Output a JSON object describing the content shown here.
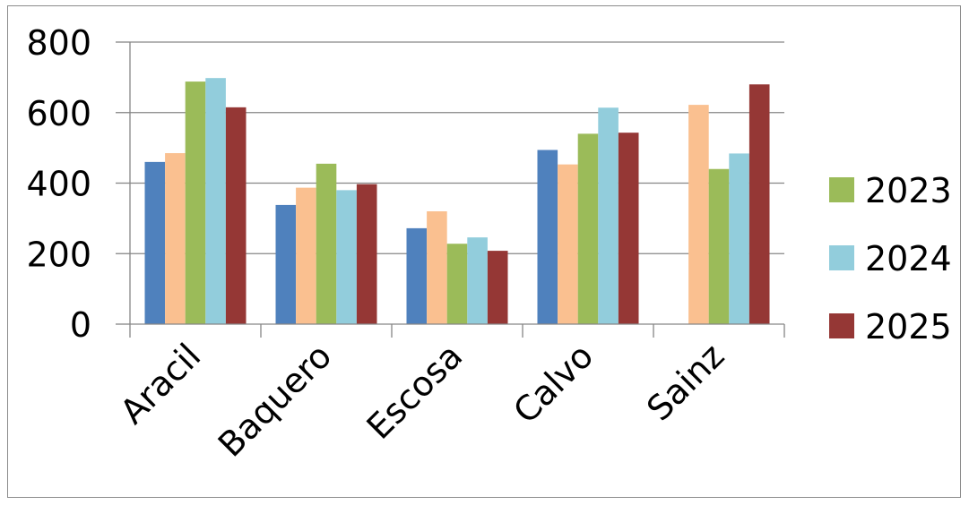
{
  "chart_data": {
    "type": "bar",
    "title": "",
    "xlabel": "",
    "ylabel": "",
    "categories": [
      "Aracil",
      "Baquero",
      "Escosa",
      "Calvo",
      "Sainz"
    ],
    "ylim": [
      0,
      800
    ],
    "yticks": [
      0,
      200,
      400,
      600,
      800
    ],
    "grid": true,
    "legend_position": "right",
    "series": [
      {
        "values": [
          460,
          338,
          272,
          494,
          null
        ],
        "color": "#4f81bd"
      },
      {
        "values": [
          485,
          387,
          320,
          453,
          622
        ],
        "color": "#fac090"
      },
      {
        "name": "2023",
        "values": [
          688,
          455,
          228,
          540,
          440
        ],
        "color": "#9bbb59"
      },
      {
        "name": "2024",
        "values": [
          698,
          380,
          246,
          614,
          484
        ],
        "color": "#92cddc"
      },
      {
        "name": "2025",
        "values": [
          615,
          397,
          208,
          543,
          680
        ],
        "color": "#953735"
      }
    ]
  }
}
